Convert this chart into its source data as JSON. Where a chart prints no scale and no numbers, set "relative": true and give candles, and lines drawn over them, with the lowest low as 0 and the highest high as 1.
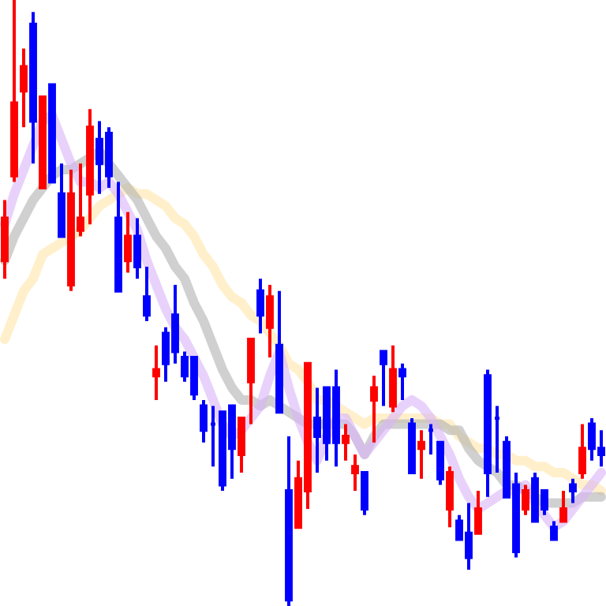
{
  "chart_data": {
    "type": "candlestick",
    "relative": true,
    "categories": [
      null,
      null,
      null,
      null,
      null,
      null,
      null,
      null,
      null,
      null,
      null,
      null,
      null,
      null,
      null,
      null,
      null,
      null,
      null,
      null,
      null,
      null,
      null,
      null,
      null,
      null,
      null,
      null,
      null,
      null,
      null,
      null,
      null,
      null,
      null,
      null,
      null,
      null,
      null,
      null,
      null,
      null,
      null,
      null,
      null,
      null,
      null,
      null,
      null,
      null,
      null,
      null,
      null,
      null,
      null,
      null,
      null,
      null,
      null,
      null,
      null,
      null,
      null,
      null
    ],
    "ohlc": [
      [
        0.57,
        0.67,
        0.54,
        0.64
      ],
      [
        0.71,
        1.0,
        0.7,
        0.83
      ],
      [
        0.85,
        0.92,
        0.79,
        0.89
      ],
      [
        0.96,
        0.98,
        0.73,
        0.8
      ],
      [
        0.69,
        0.84,
        0.69,
        0.84
      ],
      [
        0.86,
        0.86,
        0.7,
        0.7
      ],
      [
        0.68,
        0.73,
        0.61,
        0.61
      ],
      [
        0.53,
        0.72,
        0.52,
        0.68
      ],
      [
        0.62,
        0.73,
        0.61,
        0.64
      ],
      [
        0.68,
        0.82,
        0.63,
        0.79
      ],
      [
        0.77,
        0.8,
        0.68,
        0.73
      ],
      [
        0.78,
        0.79,
        0.69,
        0.71
      ],
      [
        0.64,
        0.7,
        0.52,
        0.52
      ],
      [
        0.57,
        0.65,
        0.55,
        0.61
      ],
      [
        0.61,
        0.64,
        0.54,
        0.56
      ],
      [
        0.51,
        0.56,
        0.47,
        0.48
      ],
      [
        0.38,
        0.43,
        0.34,
        0.39
      ],
      [
        0.45,
        0.46,
        0.37,
        0.4
      ],
      [
        0.48,
        0.53,
        0.4,
        0.42
      ],
      [
        0.41,
        0.42,
        0.37,
        0.38
      ],
      [
        0.41,
        0.41,
        0.34,
        0.35
      ],
      [
        0.33,
        0.34,
        0.27,
        0.29
      ],
      [
        0.3,
        0.33,
        0.23,
        0.3
      ],
      [
        0.32,
        0.32,
        0.19,
        0.2
      ],
      [
        0.33,
        0.33,
        0.21,
        0.26
      ],
      [
        0.25,
        0.31,
        0.22,
        0.31
      ],
      [
        0.37,
        0.44,
        0.3,
        0.44
      ],
      [
        0.52,
        0.54,
        0.45,
        0.48
      ],
      [
        0.46,
        0.53,
        0.41,
        0.51
      ],
      [
        0.43,
        0.52,
        0.32,
        0.32
      ],
      [
        0.19,
        0.28,
        0.0,
        0.01
      ],
      [
        0.13,
        0.24,
        0.13,
        0.21
      ],
      [
        0.19,
        0.4,
        0.16,
        0.4
      ],
      [
        0.31,
        0.36,
        0.22,
        0.28
      ],
      [
        0.36,
        0.36,
        0.24,
        0.27
      ],
      [
        0.36,
        0.39,
        0.23,
        0.27
      ],
      [
        0.27,
        0.3,
        0.24,
        0.28
      ],
      [
        0.22,
        0.25,
        0.19,
        0.23
      ],
      [
        0.22,
        0.22,
        0.15,
        0.16
      ],
      [
        0.34,
        0.38,
        0.27,
        0.36
      ],
      [
        0.42,
        0.42,
        0.33,
        0.4
      ],
      [
        0.33,
        0.43,
        0.32,
        0.39
      ],
      [
        0.39,
        0.4,
        0.34,
        0.38
      ],
      [
        0.3,
        0.31,
        0.22,
        0.22
      ],
      [
        0.26,
        0.29,
        0.21,
        0.27
      ],
      [
        0.29,
        0.3,
        0.25,
        0.29
      ],
      [
        0.27,
        0.27,
        0.2,
        0.21
      ],
      [
        0.16,
        0.23,
        0.13,
        0.22
      ],
      [
        0.14,
        0.15,
        0.11,
        0.11
      ],
      [
        0.12,
        0.17,
        0.06,
        0.08
      ],
      [
        0.12,
        0.19,
        0.12,
        0.16
      ],
      [
        0.38,
        0.39,
        0.18,
        0.22
      ],
      [
        0.31,
        0.33,
        0.22,
        0.31
      ],
      [
        0.27,
        0.28,
        0.18,
        0.18
      ],
      [
        0.2,
        0.22,
        0.08,
        0.09
      ],
      [
        0.16,
        0.2,
        0.15,
        0.19
      ],
      [
        0.21,
        0.22,
        0.14,
        0.14
      ],
      [
        0.19,
        0.19,
        0.15,
        0.16
      ],
      [
        0.13,
        0.14,
        0.11,
        0.11
      ],
      [
        0.14,
        0.19,
        0.14,
        0.16
      ],
      [
        0.2,
        0.21,
        0.17,
        0.19
      ],
      [
        0.22,
        0.3,
        0.21,
        0.26
      ],
      [
        0.3,
        0.31,
        0.24,
        0.26
      ],
      [
        0.26,
        0.29,
        0.23,
        0.25
      ]
    ],
    "colors": [
      "#ff0000",
      "#ff0000",
      "#ff0000",
      "#0000ff",
      "#ff0000",
      "#0000ff",
      "#0000ff",
      "#ff0000",
      "#ff0000",
      "#ff0000",
      "#0000ff",
      "#0000ff",
      "#0000ff",
      "#ff0000",
      "#0000ff",
      "#0000ff",
      "#ff0000",
      "#0000ff",
      "#0000ff",
      "#0000ff",
      "#0000ff",
      "#0000ff",
      "#0000ff",
      "#0000ff",
      "#0000ff",
      "#ff0000",
      "#ff0000",
      "#0000ff",
      "#ff0000",
      "#0000ff",
      "#0000ff",
      "#ff0000",
      "#ff0000",
      "#0000ff",
      "#0000ff",
      "#0000ff",
      "#ff0000",
      "#ff0000",
      "#0000ff",
      "#ff0000",
      "#0000ff",
      "#ff0000",
      "#0000ff",
      "#0000ff",
      "#ff0000",
      "#0000ff",
      "#0000ff",
      "#ff0000",
      "#0000ff",
      "#0000ff",
      "#ff0000",
      "#0000ff",
      "#0000ff",
      "#0000ff",
      "#0000ff",
      "#ff0000",
      "#0000ff",
      "#0000ff",
      "#0000ff",
      "#ff0000",
      "#0000ff",
      "#ff0000",
      "#0000ff",
      "#0000ff"
    ],
    "series": [
      {
        "type": "line",
        "color": "#ffe4a8",
        "values": [
          0.44,
          0.48,
          0.52,
          0.54,
          0.58,
          0.59,
          0.6,
          0.61,
          0.62,
          0.64,
          0.66,
          0.67,
          0.68,
          0.69,
          0.68,
          0.68,
          0.67,
          0.66,
          0.64,
          0.63,
          0.61,
          0.58,
          0.56,
          0.53,
          0.51,
          0.5,
          0.48,
          0.47,
          0.45,
          0.43,
          0.4,
          0.39,
          0.37,
          0.34,
          0.34,
          0.33,
          0.32,
          0.31,
          0.3,
          0.31,
          0.31,
          0.31,
          0.31,
          0.31,
          0.31,
          0.31,
          0.3,
          0.3,
          0.28,
          0.27,
          0.26,
          0.26,
          0.25,
          0.25,
          0.24,
          0.24,
          0.23,
          0.23,
          0.22,
          0.22,
          0.21,
          0.2,
          0.2,
          0.19
        ]
      },
      {
        "type": "line",
        "color": "#b0b0b0",
        "values": [
          0.57,
          0.61,
          0.64,
          0.67,
          0.69,
          0.71,
          0.72,
          0.72,
          0.73,
          0.74,
          0.75,
          0.73,
          0.71,
          0.69,
          0.67,
          0.64,
          0.61,
          0.59,
          0.56,
          0.54,
          0.5,
          0.47,
          0.43,
          0.39,
          0.36,
          0.34,
          0.34,
          0.33,
          0.34,
          0.33,
          0.32,
          0.31,
          0.3,
          0.3,
          0.3,
          0.3,
          0.3,
          0.28,
          0.25,
          0.28,
          0.3,
          0.3,
          0.3,
          0.3,
          0.3,
          0.3,
          0.3,
          0.29,
          0.29,
          0.26,
          0.24,
          0.23,
          0.22,
          0.2,
          0.2,
          0.19,
          0.18,
          0.17,
          0.17,
          0.17,
          0.17,
          0.18,
          0.18,
          0.18
        ]
      },
      {
        "type": "line",
        "color": "#d8b4f8",
        "values": [
          0.63,
          0.68,
          0.72,
          0.76,
          0.8,
          0.81,
          0.77,
          0.73,
          0.7,
          0.7,
          0.69,
          0.7,
          0.68,
          0.65,
          0.62,
          0.57,
          0.53,
          0.49,
          0.46,
          0.44,
          0.41,
          0.38,
          0.34,
          0.3,
          0.28,
          0.29,
          0.31,
          0.33,
          0.38,
          0.42,
          0.36,
          0.31,
          0.27,
          0.24,
          0.28,
          0.31,
          0.31,
          0.28,
          0.25,
          0.27,
          0.29,
          0.31,
          0.33,
          0.34,
          0.33,
          0.31,
          0.28,
          0.25,
          0.21,
          0.18,
          0.16,
          0.17,
          0.18,
          0.19,
          0.19,
          0.2,
          0.17,
          0.15,
          0.13,
          0.14,
          0.16,
          0.18,
          0.2,
          0.22
        ]
      }
    ]
  }
}
